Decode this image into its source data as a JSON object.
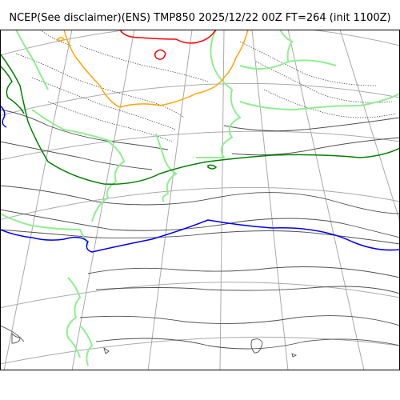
{
  "header": {
    "title": "NCEP(See disclaimer)(ENS) TMP850 2025/12/22 00Z FT=264 (init 1100Z)"
  },
  "map": {
    "background_color": "#ffffff",
    "frame_color": "#000000",
    "graticule_color": "#aaaaaa",
    "coastline_color": "#505050",
    "contour_colors": {
      "warm_minus6": "#008000",
      "zero_line": "#0000ff",
      "cold_orange": "#ffa500",
      "cold_red": "#ff0000",
      "land_fringe": "#90ee90"
    }
  }
}
